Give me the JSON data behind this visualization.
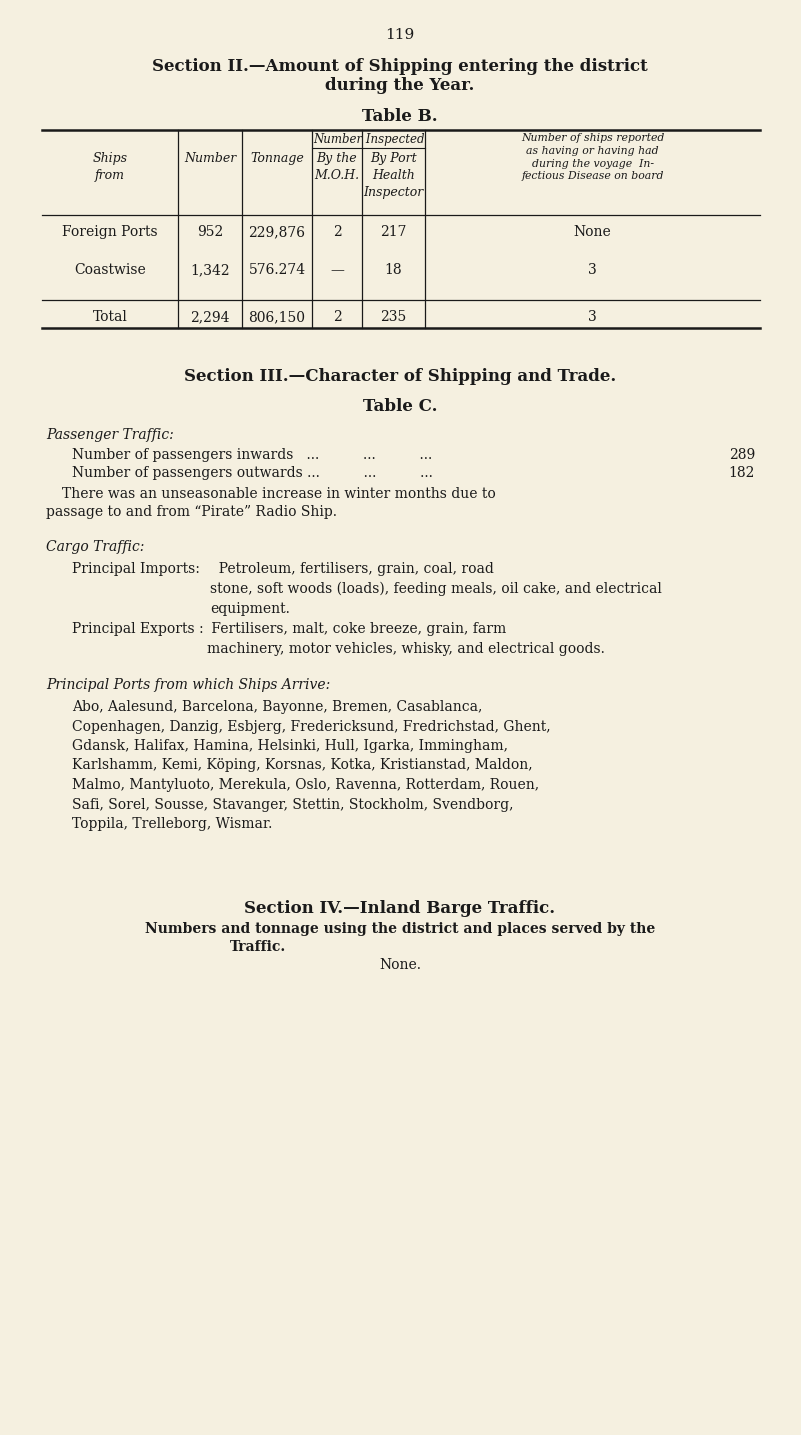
{
  "page_number": "119",
  "bg_color": "#f5f0e0",
  "text_color": "#1a1a1a",
  "section2_title_line1": "Section II.—Amount of Shipping entering the district",
  "section2_title_line2": "during the Year.",
  "table_b_title": "Table B.",
  "col5_header": "Number of ships reported\nas having or having had\nduring the voyage  In-\nfectious Disease on board",
  "table_b_rows": [
    {
      "ships_from": "Foreign Ports",
      "number": "952",
      "tonnage": "229,876",
      "moh": "2",
      "phi": "217",
      "reported": "None"
    },
    {
      "ships_from": "Coastwise",
      "number": "1,342",
      "tonnage": "576.274",
      "moh": "—",
      "phi": "18",
      "reported": "3"
    },
    {
      "ships_from": "Total",
      "number": "2,294",
      "tonnage": "806,150",
      "moh": "2",
      "phi": "235",
      "reported": "3"
    }
  ],
  "section3_title": "Section III.—Character of Shipping and Trade.",
  "table_c_title": "Table C.",
  "passenger_traffic_label": "Passenger Traffic:",
  "passenger_inwards_label": "Number of passengers inwards   ...          ...          ...",
  "passenger_inwards_value": "289",
  "passenger_outwards_label": "Number of passengers outwards ...          ...          ...",
  "passenger_outwards_value": "182",
  "passenger_note_line1": "There was an unseasonable increase in winter months due to",
  "passenger_note_line2": "passage to and from “Pirate” Radio Ship.",
  "cargo_traffic_label": "Cargo Traffic:",
  "principal_imports_label": "Principal Imports:",
  "principal_imports_text": "  Petroleum, fertilisers, grain, coal, road\nstone, soft woods (loads), feeding meals, oil cake, and electrical\nequipment.",
  "principal_exports_label": "Principal Exports :",
  "principal_exports_text": " Fertilisers, malt, coke breeze, grain, farm\nmachinery, motor vehicles, whisky, and electrical goods.",
  "principal_ports_label": "Principal Ports from which Ships Arrive:",
  "principal_ports_text": "Abo, Aalesund, Barcelona, Bayonne, Bremen, Casablanca,\nCopenhagen, Danzig, Esbjerg, Fredericksund, Fredrichstad, Ghent,\nGdansk, Halifax, Hamina, Helsinki, Hull, Igarka, Immingham,\nKarlshamm, Kemi, Köping, Korsnas, Kotka, Kristianstad, Maldon,\nMalmo, Mantyluoto, Merekula, Oslo, Ravenna, Rotterdam, Rouen,\nSafi, Sorel, Sousse, Stavanger, Stettin, Stockholm, Svendborg,\nToppila, Trelleborg, Wismar.",
  "section4_title": "Section IV.—Inland Barge Traffic.",
  "section4_subtitle_line1": "Numbers and tonnage using the district and places served by the",
  "section4_subtitle_line2": "Traffic.",
  "section4_none": "None."
}
